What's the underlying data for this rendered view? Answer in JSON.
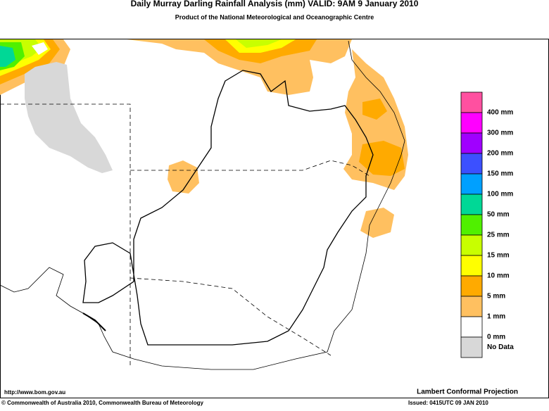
{
  "header": {
    "title": "Daily Murray Darling Rainfall Analysis (mm)  VALID: 9AM  9 January 2010",
    "subtitle": "Product of the National Meteorological and Oceanographic Centre"
  },
  "legend": {
    "items": [
      {
        "color": "#ff50a0",
        "label": "400 mm"
      },
      {
        "color": "#ff00ff",
        "label": "300 mm"
      },
      {
        "color": "#a000ff",
        "label": "200 mm"
      },
      {
        "color": "#3c50ff",
        "label": "150 mm"
      },
      {
        "color": "#00a0ff",
        "label": "100 mm"
      },
      {
        "color": "#00d896",
        "label": "50 mm"
      },
      {
        "color": "#50f000",
        "label": "25 mm"
      },
      {
        "color": "#c8ff00",
        "label": "15 mm"
      },
      {
        "color": "#ffff00",
        "label": "10 mm"
      },
      {
        "color": "#ffaa00",
        "label": "5 mm"
      },
      {
        "color": "#ffc060",
        "label": "1 mm"
      },
      {
        "color": "#ffffff",
        "label": "0 mm"
      },
      {
        "color": "#d8d8d8",
        "label": "No Data"
      }
    ]
  },
  "footer": {
    "url": "http://www.bom.gov.au",
    "projection": "Lambert Conformal Projection",
    "copyright": "© Commonwealth of Australia 2010, Commonwealth Bureau of Meteorology",
    "issued": "Issued: 0415UTC 09 JAN 2010"
  }
}
